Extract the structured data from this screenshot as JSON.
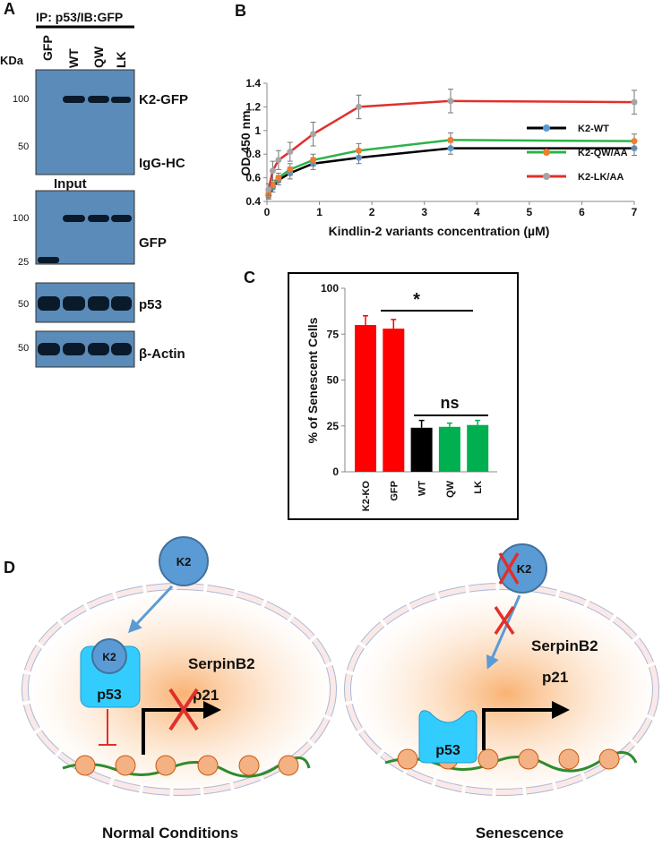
{
  "panel_a": {
    "label": "A",
    "title": "IP: p53/IB:GFP",
    "unit_label": "KDa",
    "lanes": [
      "GFP",
      "WT",
      "QW",
      "LK"
    ],
    "blots": [
      {
        "markers": [
          "100",
          "50"
        ],
        "labels": [
          "K2-GFP",
          "IgG-HC"
        ]
      },
      {
        "title": "Input",
        "markers": [
          "100",
          "25"
        ],
        "labels": [
          "GFP"
        ]
      },
      {
        "markers": [
          "50"
        ],
        "labels": [
          "p53"
        ]
      },
      {
        "markers": [
          "50"
        ],
        "labels": [
          "β-Actin"
        ]
      }
    ]
  },
  "chart_data": [
    {
      "type": "line",
      "label": "B",
      "x_label": "Kindlin-2 variants concentration (µM)",
      "y_label": "OD 450 nm",
      "x": [
        0.03,
        0.11,
        0.22,
        0.44,
        0.88,
        1.75,
        3.5,
        7
      ],
      "series": [
        {
          "name": "K2-WT",
          "color": "#000000",
          "marker_color": "#5b9bd5",
          "values": [
            0.45,
            0.52,
            0.58,
            0.64,
            0.72,
            0.77,
            0.85,
            0.85
          ],
          "errors": [
            0.03,
            0.04,
            0.04,
            0.05,
            0.05,
            0.05,
            0.05,
            0.06
          ]
        },
        {
          "name": "K2-QW/AA",
          "color": "#2db34a",
          "marker_color": "#ed7d31",
          "values": [
            0.46,
            0.54,
            0.6,
            0.67,
            0.75,
            0.83,
            0.92,
            0.91
          ],
          "errors": [
            0.03,
            0.04,
            0.04,
            0.05,
            0.05,
            0.06,
            0.06,
            0.06
          ]
        },
        {
          "name": "K2-LK/AA",
          "color": "#e0302b",
          "marker_color": "#a5a5a5",
          "values": [
            0.5,
            0.66,
            0.75,
            0.82,
            0.97,
            1.2,
            1.25,
            1.24
          ],
          "errors": [
            0.05,
            0.08,
            0.08,
            0.08,
            0.1,
            0.1,
            0.1,
            0.1
          ]
        }
      ],
      "xlim": [
        0,
        7
      ],
      "xticks": [
        0,
        1,
        2,
        3,
        4,
        5,
        6,
        7
      ],
      "ylim": [
        0.4,
        1.4
      ],
      "yticks": [
        0.4,
        0.6,
        0.8,
        1,
        1.2,
        1.4
      ]
    },
    {
      "type": "bar",
      "label": "C",
      "y_label": "% of Senescent Cells",
      "categories": [
        "K2-KO",
        "GFP",
        "WT",
        "QW",
        "LK"
      ],
      "values": [
        80,
        78,
        24,
        24.5,
        25.5
      ],
      "errors": [
        5,
        5,
        4,
        2,
        2.5
      ],
      "colors": [
        "#ff0000",
        "#ff0000",
        "#000000",
        "#00b050",
        "#00b050"
      ],
      "ylim": [
        0,
        100
      ],
      "yticks": [
        0,
        25,
        50,
        75,
        100
      ],
      "annotations": [
        {
          "text": "*"
        },
        {
          "text": "ns"
        }
      ]
    }
  ],
  "panel_d": {
    "label": "D",
    "left": {
      "k2": "K2",
      "k2_bound": "K2",
      "p53": "p53",
      "gene1": "SerpinB2",
      "gene2": "p21",
      "caption": "Normal Conditions"
    },
    "right": {
      "k2": "K2",
      "p53": "p53",
      "gene1": "SerpinB2",
      "gene2": "p21",
      "caption": "Senescence"
    }
  }
}
